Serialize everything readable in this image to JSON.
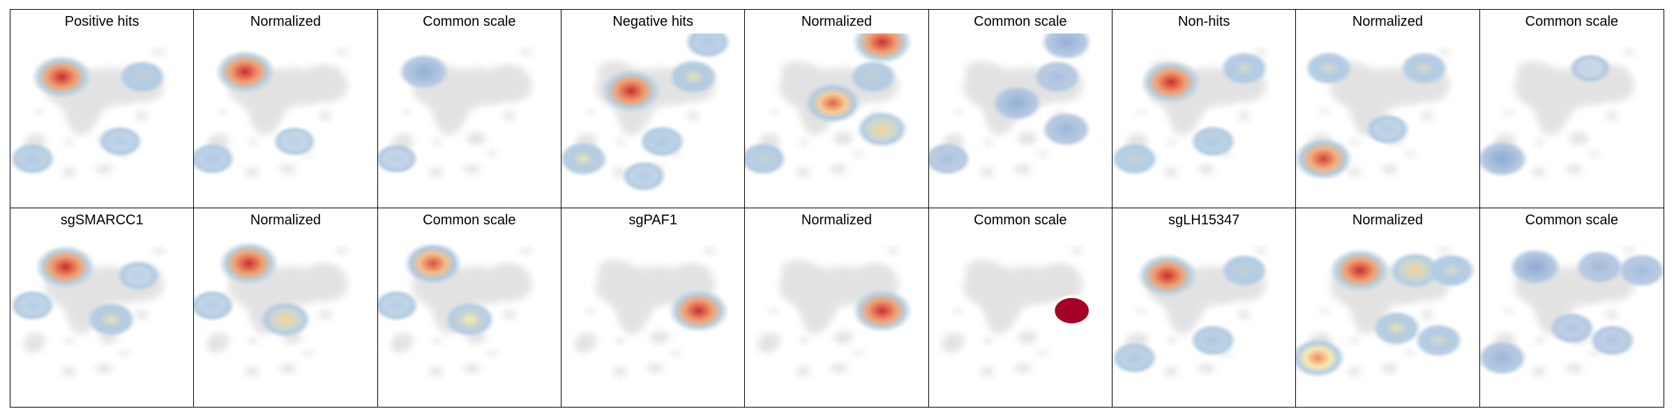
{
  "chart_data": {
    "type": "heatmap",
    "description_note": "",
    "colors": {
      "background_cells": "#dcdcdc",
      "low": "#9bb7d4",
      "mid": "#f7e7a5",
      "high": "#d7301f",
      "max": "#a50026"
    },
    "panels": [
      {
        "title": "Positive hits",
        "mode": "raw",
        "hotspots": [
          {
            "cx": 0.28,
            "cy": 0.25,
            "v": 0.95
          },
          {
            "cx": 0.72,
            "cy": 0.25,
            "v": 0.35
          },
          {
            "cx": 0.12,
            "cy": 0.72,
            "v": 0.3
          },
          {
            "cx": 0.6,
            "cy": 0.62,
            "v": 0.25
          }
        ]
      },
      {
        "title": "Normalized",
        "mode": "norm",
        "hotspots": [
          {
            "cx": 0.28,
            "cy": 0.22,
            "v": 0.95
          },
          {
            "cx": 0.1,
            "cy": 0.72,
            "v": 0.3
          },
          {
            "cx": 0.55,
            "cy": 0.62,
            "v": 0.2
          }
        ]
      },
      {
        "title": "Common scale",
        "mode": "common",
        "hotspots": [
          {
            "cx": 0.25,
            "cy": 0.22,
            "v": 0.5
          },
          {
            "cx": 0.1,
            "cy": 0.72,
            "v": 0.2
          }
        ]
      },
      {
        "title": "Negative hits",
        "mode": "raw",
        "hotspots": [
          {
            "cx": 0.38,
            "cy": 0.33,
            "v": 0.95
          },
          {
            "cx": 0.72,
            "cy": 0.25,
            "v": 0.45
          },
          {
            "cx": 0.8,
            "cy": 0.05,
            "v": 0.3
          },
          {
            "cx": 0.12,
            "cy": 0.72,
            "v": 0.45
          },
          {
            "cx": 0.55,
            "cy": 0.62,
            "v": 0.3
          },
          {
            "cx": 0.45,
            "cy": 0.82,
            "v": 0.25
          }
        ]
      },
      {
        "title": "Normalized",
        "mode": "norm",
        "hotspots": [
          {
            "cx": 0.75,
            "cy": 0.05,
            "v": 0.95
          },
          {
            "cx": 0.48,
            "cy": 0.4,
            "v": 0.8
          },
          {
            "cx": 0.75,
            "cy": 0.55,
            "v": 0.55
          },
          {
            "cx": 0.7,
            "cy": 0.25,
            "v": 0.35
          },
          {
            "cx": 0.1,
            "cy": 0.72,
            "v": 0.35
          }
        ]
      },
      {
        "title": "Common scale",
        "mode": "common",
        "hotspots": [
          {
            "cx": 0.75,
            "cy": 0.05,
            "v": 0.5
          },
          {
            "cx": 0.48,
            "cy": 0.4,
            "v": 0.5
          },
          {
            "cx": 0.75,
            "cy": 0.55,
            "v": 0.45
          },
          {
            "cx": 0.7,
            "cy": 0.25,
            "v": 0.35
          },
          {
            "cx": 0.1,
            "cy": 0.72,
            "v": 0.35
          }
        ]
      },
      {
        "title": "Non-hits",
        "mode": "raw",
        "hotspots": [
          {
            "cx": 0.32,
            "cy": 0.28,
            "v": 0.95
          },
          {
            "cx": 0.72,
            "cy": 0.2,
            "v": 0.4
          },
          {
            "cx": 0.12,
            "cy": 0.72,
            "v": 0.35
          },
          {
            "cx": 0.55,
            "cy": 0.62,
            "v": 0.3
          }
        ]
      },
      {
        "title": "Normalized",
        "mode": "norm",
        "hotspots": [
          {
            "cx": 0.15,
            "cy": 0.72,
            "v": 0.9
          },
          {
            "cx": 0.18,
            "cy": 0.2,
            "v": 0.4
          },
          {
            "cx": 0.7,
            "cy": 0.2,
            "v": 0.4
          },
          {
            "cx": 0.5,
            "cy": 0.55,
            "v": 0.25
          }
        ]
      },
      {
        "title": "Common scale",
        "mode": "common",
        "hotspots": [
          {
            "cx": 0.12,
            "cy": 0.72,
            "v": 0.55
          },
          {
            "cx": 0.6,
            "cy": 0.2,
            "v": 0.15
          }
        ]
      },
      {
        "title": "sgSMARCC1",
        "mode": "raw",
        "hotspots": [
          {
            "cx": 0.3,
            "cy": 0.2,
            "v": 0.95
          },
          {
            "cx": 0.55,
            "cy": 0.5,
            "v": 0.45
          },
          {
            "cx": 0.12,
            "cy": 0.42,
            "v": 0.25
          },
          {
            "cx": 0.7,
            "cy": 0.25,
            "v": 0.2
          }
        ]
      },
      {
        "title": "Normalized",
        "mode": "norm",
        "hotspots": [
          {
            "cx": 0.3,
            "cy": 0.18,
            "v": 0.95
          },
          {
            "cx": 0.5,
            "cy": 0.5,
            "v": 0.55
          },
          {
            "cx": 0.1,
            "cy": 0.42,
            "v": 0.25
          }
        ]
      },
      {
        "title": "Common scale",
        "mode": "common_warm",
        "hotspots": [
          {
            "cx": 0.3,
            "cy": 0.18,
            "v": 0.85
          },
          {
            "cx": 0.5,
            "cy": 0.5,
            "v": 0.5
          },
          {
            "cx": 0.1,
            "cy": 0.42,
            "v": 0.25
          }
        ]
      },
      {
        "title": "sgPAF1",
        "mode": "norm",
        "hotspots": [
          {
            "cx": 0.75,
            "cy": 0.45,
            "v": 0.95
          }
        ]
      },
      {
        "title": "Normalized",
        "mode": "norm",
        "hotspots": [
          {
            "cx": 0.75,
            "cy": 0.45,
            "v": 0.95
          }
        ]
      },
      {
        "title": "Common scale",
        "mode": "solid",
        "hotspots": [
          {
            "cx": 0.78,
            "cy": 0.45,
            "v": 1.0
          }
        ]
      },
      {
        "title": "sgLH15347",
        "mode": "raw",
        "hotspots": [
          {
            "cx": 0.3,
            "cy": 0.25,
            "v": 0.95
          },
          {
            "cx": 0.72,
            "cy": 0.22,
            "v": 0.35
          },
          {
            "cx": 0.12,
            "cy": 0.72,
            "v": 0.3
          },
          {
            "cx": 0.55,
            "cy": 0.62,
            "v": 0.3
          }
        ]
      },
      {
        "title": "Normalized",
        "mode": "norm",
        "hotspots": [
          {
            "cx": 0.35,
            "cy": 0.22,
            "v": 0.95
          },
          {
            "cx": 0.65,
            "cy": 0.22,
            "v": 0.55
          },
          {
            "cx": 0.85,
            "cy": 0.22,
            "v": 0.4
          },
          {
            "cx": 0.12,
            "cy": 0.72,
            "v": 0.7
          },
          {
            "cx": 0.55,
            "cy": 0.55,
            "v": 0.45
          },
          {
            "cx": 0.78,
            "cy": 0.62,
            "v": 0.4
          }
        ]
      },
      {
        "title": "Common scale",
        "mode": "common",
        "hotspots": [
          {
            "cx": 0.3,
            "cy": 0.2,
            "v": 0.55
          },
          {
            "cx": 0.65,
            "cy": 0.2,
            "v": 0.4
          },
          {
            "cx": 0.88,
            "cy": 0.22,
            "v": 0.4
          },
          {
            "cx": 0.12,
            "cy": 0.72,
            "v": 0.45
          },
          {
            "cx": 0.5,
            "cy": 0.55,
            "v": 0.3
          },
          {
            "cx": 0.72,
            "cy": 0.62,
            "v": 0.3
          }
        ]
      }
    ]
  }
}
